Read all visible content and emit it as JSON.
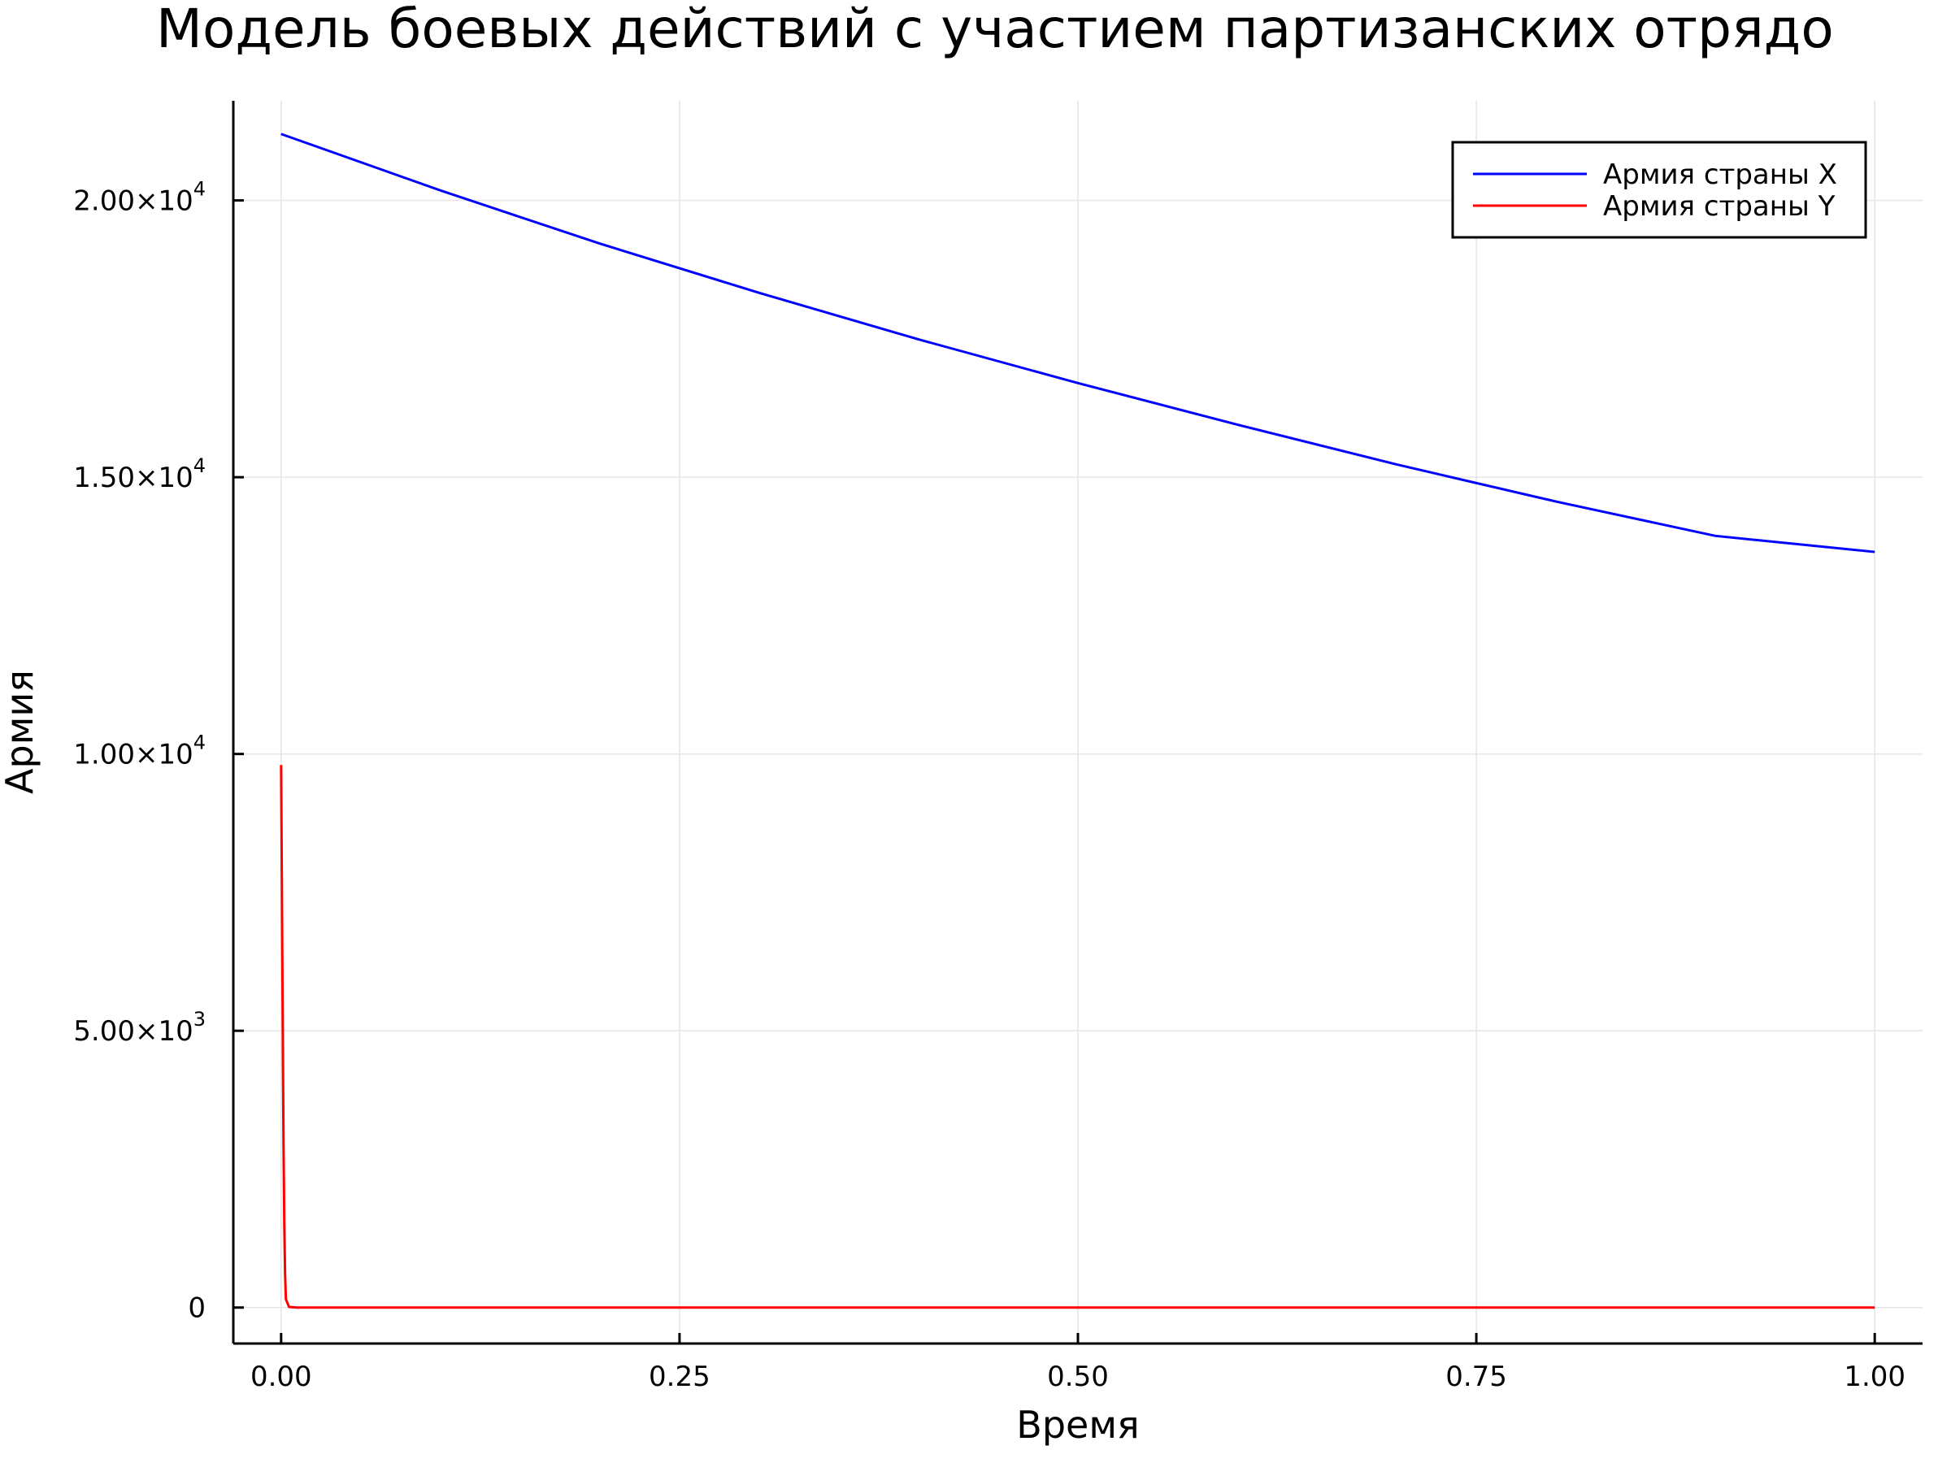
{
  "chart_data": {
    "type": "line",
    "title": "Модель боевых действий с участием партизанских отрядо",
    "xlabel": "Время",
    "ylabel": "Армия",
    "xlim": [
      -0.03,
      1.03
    ],
    "ylim": [
      -650,
      21800
    ],
    "grid": true,
    "legend_position": "top-right",
    "x_ticks": [
      {
        "value": 0.0,
        "label": "0.00"
      },
      {
        "value": 0.25,
        "label": "0.25"
      },
      {
        "value": 0.5,
        "label": "0.50"
      },
      {
        "value": 0.75,
        "label": "0.75"
      },
      {
        "value": 1.0,
        "label": "1.00"
      }
    ],
    "y_ticks": [
      {
        "value": 0,
        "mantissa": "0",
        "exponent": ""
      },
      {
        "value": 5000,
        "mantissa": "5.00×10",
        "exponent": "3"
      },
      {
        "value": 10000,
        "mantissa": "1.00×10",
        "exponent": "4"
      },
      {
        "value": 15000,
        "mantissa": "1.50×10",
        "exponent": "4"
      },
      {
        "value": 20000,
        "mantissa": "2.00×10",
        "exponent": "4"
      }
    ],
    "series": [
      {
        "name": "Армия страны X",
        "color": "#0000ff",
        "x": [
          0.0,
          0.1,
          0.2,
          0.3,
          0.4,
          0.5,
          0.6,
          0.7,
          0.8,
          0.9,
          1.0
        ],
        "y": [
          21200,
          20180,
          19220,
          18330,
          17490,
          16700,
          15950,
          15230,
          14560,
          13940,
          13650
        ]
      },
      {
        "name": "Армия страны Y",
        "color": "#ff0000",
        "x": [
          0.0,
          0.0005,
          0.001,
          0.0015,
          0.002,
          0.0025,
          0.003,
          0.005,
          0.01,
          0.1,
          0.25,
          0.5,
          0.75,
          1.0
        ],
        "y": [
          9800,
          7500,
          5200,
          3000,
          1500,
          600,
          150,
          10,
          0,
          0,
          0,
          0,
          0,
          0
        ]
      }
    ]
  }
}
